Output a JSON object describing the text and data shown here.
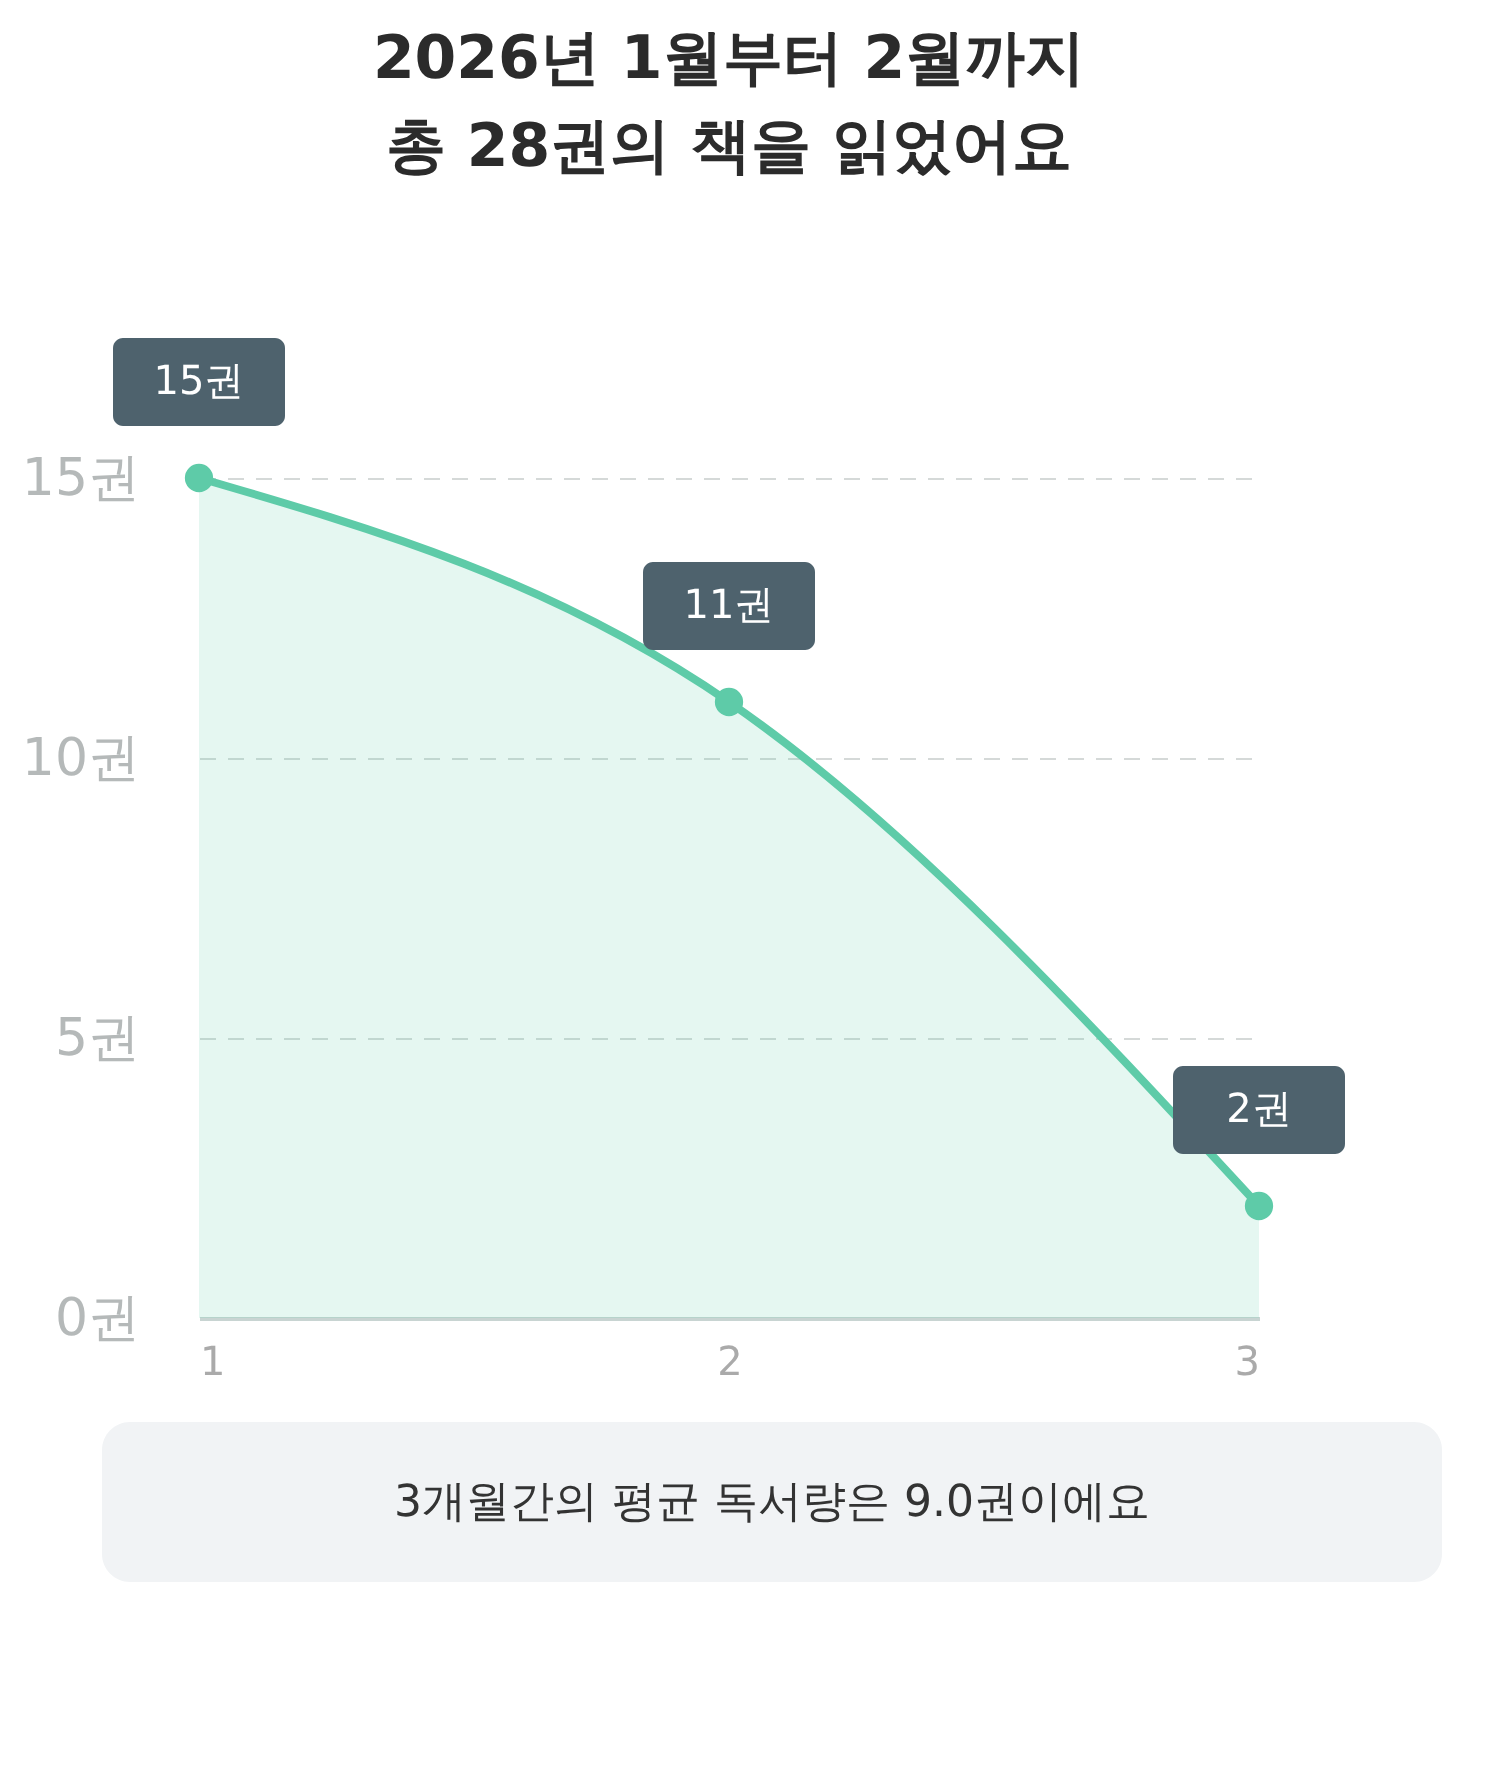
{
  "chart_data": {
    "type": "area",
    "title": [
      "2026년 1월부터 2월까지",
      "총 28권의 책을 읽었어요"
    ],
    "x": [
      1,
      2,
      3
    ],
    "series": [
      {
        "color": "#5ecba8",
        "values": [
          15,
          11,
          2
        ],
        "value_labels": [
          "15권",
          "11권",
          "2권"
        ]
      }
    ],
    "xlim": [
      1,
      3
    ],
    "xticks": [
      1,
      2,
      3
    ],
    "ylim": [
      0,
      15
    ],
    "yticks": [
      {
        "value": 0,
        "label": "0권"
      },
      {
        "value": 5,
        "label": "5권"
      },
      {
        "value": 10,
        "label": "10권"
      },
      {
        "value": 15,
        "label": "15권"
      }
    ],
    "grid": "y",
    "marker": "circle",
    "line_style": "solid",
    "legend": false,
    "annotations": [
      "3개월간의 평균 독서량은 9.0권이에요"
    ]
  }
}
